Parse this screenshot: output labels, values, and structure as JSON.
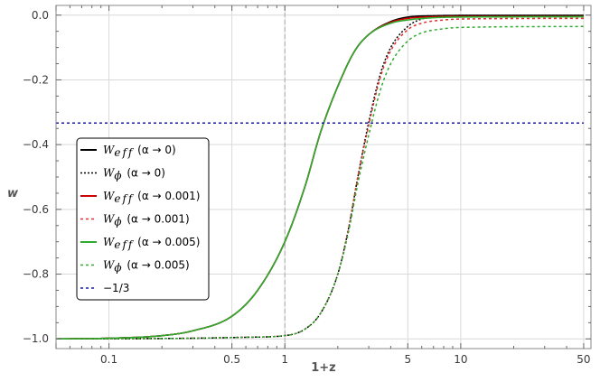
{
  "chart_data": {
    "type": "line",
    "xlabel": "1+z",
    "ylabel": "w",
    "xscale": "log",
    "xlim": [
      0.05,
      55
    ],
    "ylim": [
      -1.03,
      0.03
    ],
    "x_ticks": [
      {
        "value": 0.1,
        "label": "0.1"
      },
      {
        "value": 0.5,
        "label": "0.5"
      },
      {
        "value": 1,
        "label": "1"
      },
      {
        "value": 5,
        "label": "5"
      },
      {
        "value": 10,
        "label": "10"
      },
      {
        "value": 50,
        "label": "50"
      }
    ],
    "y_ticks": [
      {
        "value": 0.0,
        "label": "0.0"
      },
      {
        "value": -0.2,
        "label": "−0.2"
      },
      {
        "value": -0.4,
        "label": "−0.4"
      },
      {
        "value": -0.6,
        "label": "−0.6"
      },
      {
        "value": -0.8,
        "label": "−0.8"
      },
      {
        "value": -1.0,
        "label": "−1.0"
      }
    ],
    "grid": true,
    "reference_vline_x": 1,
    "legend_position": "left",
    "series": [
      {
        "name": "W_eff",
        "param": "(α → 0)",
        "color": "#000000",
        "dash": "solid",
        "x": [
          0.05,
          0.1,
          0.2,
          0.3,
          0.5,
          0.7,
          1.0,
          1.3,
          1.6,
          2.0,
          2.5,
          3.0,
          4.0,
          5.0,
          7.0,
          10,
          50
        ],
        "y": [
          -1.0,
          -0.998,
          -0.99,
          -0.975,
          -0.93,
          -0.85,
          -0.7,
          -0.53,
          -0.36,
          -0.22,
          -0.11,
          -0.06,
          -0.02,
          -0.006,
          -0.002,
          -0.001,
          -0.001
        ]
      },
      {
        "name": "W_ϕ",
        "param": "(α → 0)",
        "color": "#000000",
        "dash": "dotted",
        "x": [
          0.05,
          0.3,
          0.6,
          1.0,
          1.3,
          1.6,
          2.0,
          2.3,
          2.6,
          3.0,
          3.5,
          4.0,
          5.0,
          6.0,
          8.0,
          10,
          50
        ],
        "y": [
          -1.0,
          -0.998,
          -0.995,
          -0.99,
          -0.97,
          -0.92,
          -0.8,
          -0.66,
          -0.5,
          -0.33,
          -0.18,
          -0.1,
          -0.035,
          -0.012,
          -0.003,
          -0.001,
          -0.001
        ]
      },
      {
        "name": "W_eff",
        "param": "(α → 0.001)",
        "color": "#cc0000",
        "dash": "solid",
        "x": [
          0.05,
          0.1,
          0.2,
          0.3,
          0.5,
          0.7,
          1.0,
          1.3,
          1.6,
          2.0,
          2.5,
          3.0,
          4.0,
          5.0,
          7.0,
          10,
          50
        ],
        "y": [
          -1.0,
          -0.998,
          -0.99,
          -0.975,
          -0.93,
          -0.85,
          -0.7,
          -0.53,
          -0.36,
          -0.22,
          -0.11,
          -0.06,
          -0.022,
          -0.01,
          -0.005,
          -0.004,
          -0.004
        ]
      },
      {
        "name": "W_ϕ",
        "param": "(α → 0.001)",
        "color": "#e03030",
        "dash": "dashed",
        "x": [
          0.05,
          0.3,
          0.6,
          1.0,
          1.3,
          1.6,
          2.0,
          2.3,
          2.6,
          3.0,
          3.5,
          4.0,
          5.0,
          6.0,
          8.0,
          10,
          50
        ],
        "y": [
          -1.0,
          -0.998,
          -0.995,
          -0.99,
          -0.97,
          -0.92,
          -0.8,
          -0.66,
          -0.5,
          -0.34,
          -0.19,
          -0.11,
          -0.045,
          -0.025,
          -0.015,
          -0.012,
          -0.01
        ]
      },
      {
        "name": "W_eff",
        "param": "(α → 0.005)",
        "color": "#2eaa2e",
        "dash": "solid",
        "x": [
          0.05,
          0.1,
          0.2,
          0.3,
          0.5,
          0.7,
          1.0,
          1.3,
          1.6,
          2.0,
          2.5,
          3.0,
          4.0,
          5.0,
          7.0,
          10,
          50
        ],
        "y": [
          -1.0,
          -0.998,
          -0.99,
          -0.975,
          -0.93,
          -0.85,
          -0.7,
          -0.53,
          -0.36,
          -0.22,
          -0.11,
          -0.06,
          -0.025,
          -0.015,
          -0.008,
          -0.006,
          -0.005
        ]
      },
      {
        "name": "W_ϕ",
        "param": "(α → 0.005)",
        "color": "#2eaa2e",
        "dash": "dashed",
        "x": [
          0.05,
          0.3,
          0.6,
          1.0,
          1.3,
          1.6,
          2.0,
          2.3,
          2.6,
          3.0,
          3.5,
          4.0,
          5.0,
          6.0,
          8.0,
          10,
          50
        ],
        "y": [
          -1.0,
          -0.998,
          -0.995,
          -0.99,
          -0.97,
          -0.92,
          -0.8,
          -0.67,
          -0.52,
          -0.37,
          -0.23,
          -0.15,
          -0.08,
          -0.055,
          -0.042,
          -0.038,
          -0.035
        ]
      },
      {
        "name": "−1/3",
        "param": "",
        "color": "#1a1aaa",
        "dash": "dashed",
        "x": [
          0.05,
          50
        ],
        "y": [
          -0.3333,
          -0.3333
        ]
      }
    ]
  }
}
